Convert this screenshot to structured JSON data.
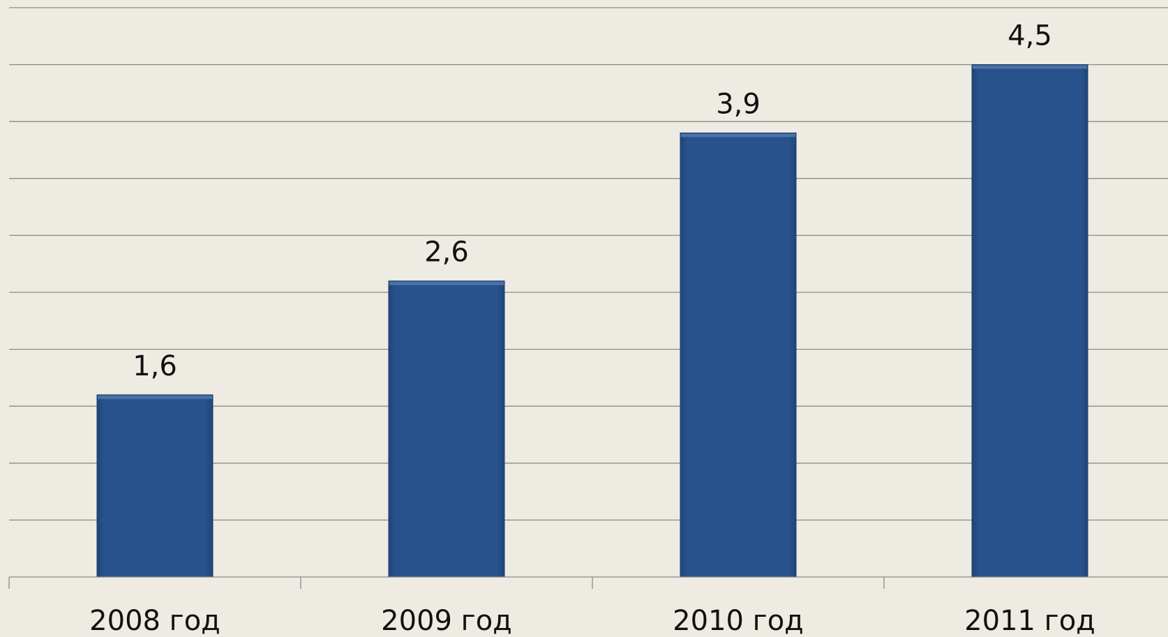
{
  "chart_data": {
    "type": "bar",
    "categories": [
      "2008 год",
      "2009 год",
      "2010 год",
      "2011 год"
    ],
    "values": [
      1.6,
      2.6,
      3.9,
      4.5
    ],
    "value_labels": [
      "1,6",
      "2,6",
      "3,9",
      "4,5"
    ],
    "title": "",
    "xlabel": "",
    "ylabel": "",
    "ylim": [
      0,
      5
    ],
    "grid": true,
    "bar_color": "#26518A",
    "background_color": "#EEEBE2"
  }
}
